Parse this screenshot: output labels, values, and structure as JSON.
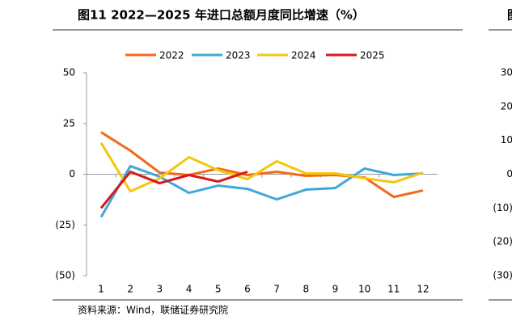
{
  "chart_data": [
    {
      "type": "line",
      "title": "图11 2022—2025 年进口总额月度同比增速（%）",
      "categories": [
        "1",
        "2",
        "3",
        "4",
        "5",
        "6",
        "7",
        "8",
        "9",
        "10",
        "11",
        "12"
      ],
      "series": [
        {
          "name": "2022",
          "color": "#f26a1b",
          "values": [
            20.7,
            11.6,
            0.8,
            -0.4,
            2.8,
            -0.4,
            1.2,
            -0.8,
            -0.4,
            -1.6,
            -11.2,
            -8
          ]
        },
        {
          "name": "2023",
          "color": "#3fa7da",
          "values": [
            -21.1,
            4,
            -1.2,
            -9.2,
            -5.6,
            -7.2,
            -12.4,
            -7.6,
            -6.8,
            2.8,
            -0.4,
            0.4
          ]
        },
        {
          "name": "2024",
          "color": "#f2c80f",
          "values": [
            15.5,
            -8.4,
            -2,
            8.4,
            2,
            -2.4,
            6.4,
            0.4,
            0.4,
            -2,
            -4,
            0.8
          ]
        },
        {
          "name": "2025",
          "color": "#d9181e",
          "values": [
            -16.7,
            1.2,
            -4.4,
            -0.4,
            -3.6,
            1.2,
            null,
            null,
            null,
            null,
            null,
            null
          ]
        }
      ],
      "ylim": [
        -50,
        50
      ],
      "yticks": [
        50,
        25,
        0,
        {
          "value": -25,
          "label": "(25)"
        },
        {
          "value": -50,
          "label": "(50)"
        }
      ],
      "negative_tick_color": "#c00000",
      "legend": "top",
      "source": "资料来源：Wind，联储证券研究院"
    },
    {
      "type": "line",
      "title": "图",
      "ylim": [
        -30,
        30
      ],
      "yticks": [
        30,
        20,
        10,
        0,
        {
          "value": -10,
          "label": "(10)"
        },
        {
          "value": -20,
          "label": "(20)"
        },
        {
          "value": -30,
          "label": "(30)"
        }
      ],
      "negative_tick_color": "#c00000"
    }
  ]
}
